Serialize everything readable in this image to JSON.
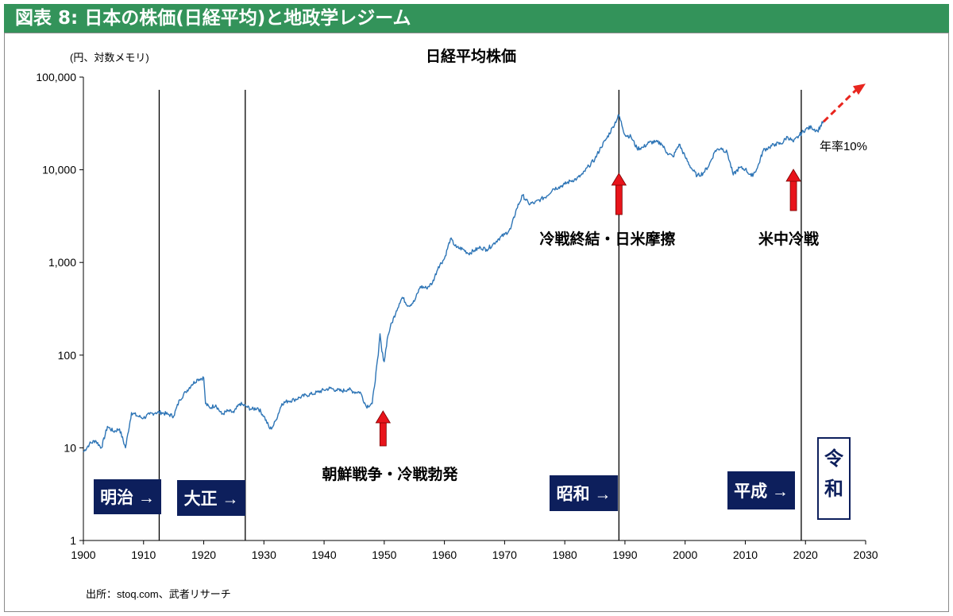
{
  "header": {
    "title": "図表 8: 日本の株価(日経平均)と地政学レジーム"
  },
  "chart_data": {
    "type": "line",
    "title": "日経平均株価",
    "ylabel": "(円、対数メモリ)",
    "xlabel": "",
    "y_scale": "log",
    "ylim": [
      1,
      100000
    ],
    "xlim": [
      1900,
      2030
    ],
    "x_ticks": [
      "1900",
      "1910",
      "1920",
      "1930",
      "1940",
      "1950",
      "1960",
      "1970",
      "1980",
      "1990",
      "2000",
      "2010",
      "2020",
      "2030"
    ],
    "y_ticks": [
      "1",
      "10",
      "100",
      "1,000",
      "10,000",
      "100,000"
    ],
    "grid": false,
    "series": [
      {
        "color": "#2e75b6",
        "x": [
          1900,
          1901,
          1902,
          1903,
          1904,
          1905,
          1906,
          1907,
          1908,
          1909,
          1910,
          1911,
          1912,
          1913,
          1914,
          1915,
          1916,
          1917,
          1918,
          1919,
          1920,
          1920.3,
          1921,
          1922,
          1923,
          1924,
          1925,
          1926,
          1927,
          1928,
          1929,
          1930,
          1931,
          1931.5,
          1932,
          1933,
          1934,
          1935,
          1936,
          1937,
          1938,
          1939,
          1940,
          1941,
          1942,
          1943,
          1944,
          1945,
          1946,
          1947,
          1948,
          1949,
          1949.3,
          1949.6,
          1950,
          1950.5,
          1951,
          1952,
          1952.5,
          1953,
          1954,
          1955,
          1956,
          1957,
          1958,
          1959,
          1960,
          1961,
          1962,
          1963,
          1964,
          1965,
          1966,
          1967,
          1968,
          1969,
          1970,
          1971,
          1972,
          1973,
          1974,
          1975,
          1976,
          1977,
          1978,
          1979,
          1980,
          1981,
          1982,
          1983,
          1984,
          1985,
          1986,
          1987,
          1988,
          1989,
          1990,
          1991,
          1992,
          1993,
          1994,
          1995,
          1996,
          1997,
          1998,
          1999,
          2000,
          2001,
          2002,
          2003,
          2004,
          2005,
          2006,
          2007,
          2008,
          2009,
          2010,
          2011,
          2012,
          2013,
          2014,
          2015,
          2016,
          2017,
          2018,
          2019,
          2020,
          2021,
          2022,
          2023
        ],
        "y": [
          9,
          11,
          12,
          10,
          17,
          15,
          16,
          10,
          24,
          22,
          21,
          23,
          24,
          24,
          23,
          22,
          33,
          40,
          48,
          55,
          57,
          30,
          27,
          29,
          23,
          25,
          24,
          30,
          28,
          26,
          27,
          22,
          16,
          17,
          20,
          30,
          32,
          33,
          35,
          37,
          38,
          40,
          42,
          44,
          42,
          41,
          43,
          40,
          40,
          28,
          30,
          100,
          170,
          110,
          85,
          150,
          200,
          300,
          360,
          420,
          340,
          380,
          550,
          530,
          600,
          900,
          1100,
          1800,
          1450,
          1400,
          1250,
          1350,
          1450,
          1380,
          1550,
          1800,
          2000,
          2300,
          3800,
          5300,
          4300,
          4400,
          4800,
          5200,
          6200,
          6500,
          7000,
          7600,
          8000,
          9000,
          11000,
          13000,
          17500,
          22000,
          29000,
          38900,
          23800,
          22800,
          17000,
          17400,
          19700,
          19900,
          19400,
          15300,
          13800,
          18900,
          13800,
          10500,
          8600,
          9200,
          11300,
          16100,
          17200,
          15300,
          8800,
          10500,
          10200,
          8500,
          10400,
          16300,
          17500,
          19000,
          19100,
          22800,
          20000,
          23600,
          27400,
          28800,
          26100,
          33500
        ],
        "forecast": {
          "label": "年率10%",
          "x": [
            2023,
            2030
          ],
          "y": [
            33000,
            85000
          ]
        }
      }
    ],
    "vlines": [
      1912.6,
      1926.9,
      1989.0,
      2019.3
    ],
    "annotations": [
      {
        "text": "朝鮮戦争・冷戦勃発",
        "arrow_x": 1949.8
      },
      {
        "text": "冷戦終結・日米摩擦",
        "arrow_x": 1989.0
      },
      {
        "text": "米中冷戦",
        "arrow_x": 2018.0
      }
    ],
    "eras": [
      {
        "name": "明治",
        "arrow": "→"
      },
      {
        "name": "大正",
        "arrow": "→"
      },
      {
        "name": "昭和",
        "arrow": "→"
      },
      {
        "name": "平成",
        "arrow": "→"
      },
      {
        "name": "令\n和"
      }
    ],
    "source": "出所：stoq.com、武者リサーチ"
  }
}
